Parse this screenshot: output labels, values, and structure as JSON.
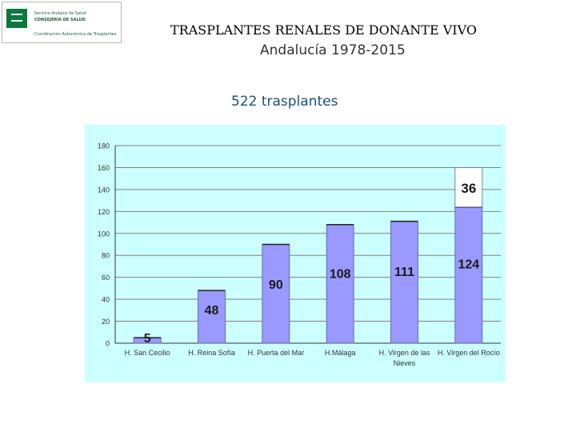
{
  "logo": {
    "line1": "Servicio Andaluz de Salud",
    "line2": "CONSEJERÍA DE SALUD",
    "line3": "Coordinación Autonómica de Trasplantes"
  },
  "header": {
    "title": "TRASPLANTES RENALES DE DONANTE VIVO",
    "subtitle": "Andalucía 1978-2015",
    "count": "522 trasplantes"
  },
  "chart_data": {
    "type": "bar",
    "stacked": true,
    "categories": [
      "H. San Cecilio",
      "H. Reina Sofía",
      "H. Puerta del Mar",
      "H.Málaga",
      "H. Virgen de las Nieves",
      "H. Virgen del Rocío"
    ],
    "category_lines": [
      [
        "H. San Cecilio"
      ],
      [
        "H. Reina Sofía"
      ],
      [
        "H. Puerta del Mar"
      ],
      [
        "H.Málaga"
      ],
      [
        "H. Virgen de las",
        "Nieves"
      ],
      [
        "H. Virgen del Rocío"
      ]
    ],
    "series": [
      {
        "values": [
          5,
          48,
          90,
          108,
          111,
          124
        ],
        "labels": [
          "5",
          "48",
          "90",
          "108",
          "111",
          "124"
        ],
        "color": "#9999ff"
      },
      {
        "values": [
          0,
          0,
          0,
          0,
          0,
          36
        ],
        "labels": [
          "",
          "",
          "",
          "",
          "",
          "36"
        ],
        "color": "#ffffff"
      }
    ],
    "ylim": [
      0,
      180
    ],
    "yticks": [
      0,
      20,
      40,
      60,
      80,
      100,
      120,
      140,
      160,
      180
    ],
    "grid": true,
    "legend": "none",
    "colors": {
      "background": "#ccffff",
      "bar": "#9999ff",
      "grid": "#808080"
    }
  }
}
